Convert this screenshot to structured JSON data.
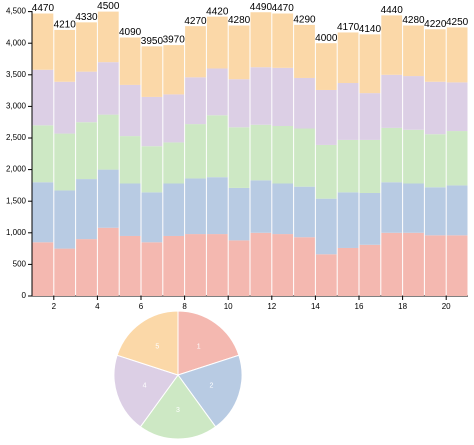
{
  "chart_data": [
    {
      "type": "bar",
      "stacked": true,
      "x": [
        1,
        2,
        3,
        4,
        5,
        6,
        7,
        8,
        9,
        10,
        11,
        12,
        13,
        14,
        15,
        16,
        17,
        18,
        19,
        20
      ],
      "series": [
        {
          "color": "#f4b8b0",
          "values": [
            850,
            750,
            900,
            1080,
            950,
            850,
            950,
            980,
            980,
            880,
            1000,
            980,
            930,
            660,
            760,
            810,
            1000,
            1000,
            960,
            960
          ]
        },
        {
          "color": "#b8cbe3",
          "values": [
            950,
            920,
            950,
            920,
            830,
            790,
            830,
            880,
            900,
            830,
            830,
            800,
            800,
            880,
            880,
            820,
            800,
            780,
            760,
            790
          ]
        },
        {
          "color": "#cde8c4",
          "values": [
            900,
            900,
            900,
            870,
            750,
            730,
            650,
            860,
            980,
            960,
            880,
            910,
            920,
            850,
            830,
            840,
            860,
            850,
            840,
            860
          ]
        },
        {
          "color": "#dccfe5",
          "values": [
            880,
            820,
            800,
            830,
            810,
            780,
            760,
            740,
            740,
            760,
            910,
            920,
            800,
            870,
            900,
            740,
            840,
            850,
            830,
            770
          ]
        },
        {
          "color": "#fbd8a8",
          "values": [
            890,
            820,
            780,
            800,
            750,
            800,
            780,
            810,
            820,
            850,
            870,
            860,
            840,
            740,
            800,
            930,
            940,
            800,
            830,
            870
          ]
        }
      ],
      "totals": [
        4470,
        4210,
        4330,
        4500,
        4090,
        3950,
        3970,
        4270,
        4420,
        4280,
        4490,
        4470,
        4290,
        4000,
        4170,
        4140,
        4440,
        4280,
        4220,
        4250
      ],
      "xlim": [
        1,
        21
      ],
      "xticks": [
        2,
        4,
        6,
        8,
        10,
        12,
        14,
        16,
        18,
        20
      ],
      "ylim": [
        0,
        4500
      ],
      "yticks": [
        0,
        500,
        {
          "value": 1000,
          "label": "1,000"
        },
        {
          "value": 1500,
          "label": "1,500"
        },
        {
          "value": 2000,
          "label": "2,000"
        },
        {
          "value": 2500,
          "label": "2,500"
        },
        {
          "value": 3000,
          "label": "3,000"
        },
        {
          "value": 3500,
          "label": "3,500"
        },
        {
          "value": 4000,
          "label": "4,000"
        },
        {
          "value": 4500,
          "label": "4,500"
        }
      ]
    },
    {
      "type": "pie",
      "categories": [
        "1",
        "2",
        "3",
        "4",
        "5"
      ],
      "values": [
        1,
        1,
        1,
        1,
        1
      ],
      "colors": [
        "#f4b8b0",
        "#b8cbe3",
        "#cde8c4",
        "#dccfe5",
        "#fbd8a8"
      ]
    }
  ]
}
